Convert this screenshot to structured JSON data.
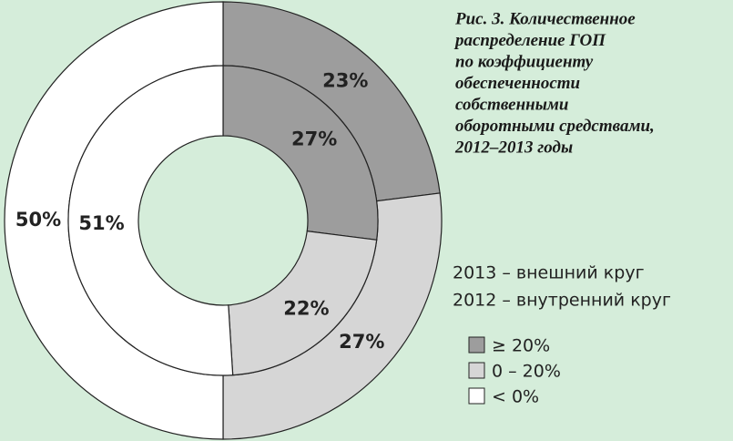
{
  "chart_data": {
    "type": "donut",
    "title": [
      "Рис. 3. Количественное",
      "распределение ГОП",
      "по коэффициенту",
      "обеспеченности",
      "собственными",
      "оборотными средствами,",
      "2012–2013 годы"
    ],
    "categories": [
      "≥ 20%",
      "0 – 20%",
      "< 0%"
    ],
    "colors": [
      "#9d9d9d",
      "#d6d6d6",
      "#ffffff"
    ],
    "series": [
      {
        "name": "2013 – внешний круг",
        "values": [
          23,
          27,
          50
        ],
        "value_labels": [
          "23%",
          "27%",
          "50%"
        ]
      },
      {
        "name": "2012 – внутренний круг",
        "values": [
          27,
          22,
          51
        ],
        "value_labels": [
          "27%",
          "22%",
          "51%"
        ]
      }
    ]
  }
}
